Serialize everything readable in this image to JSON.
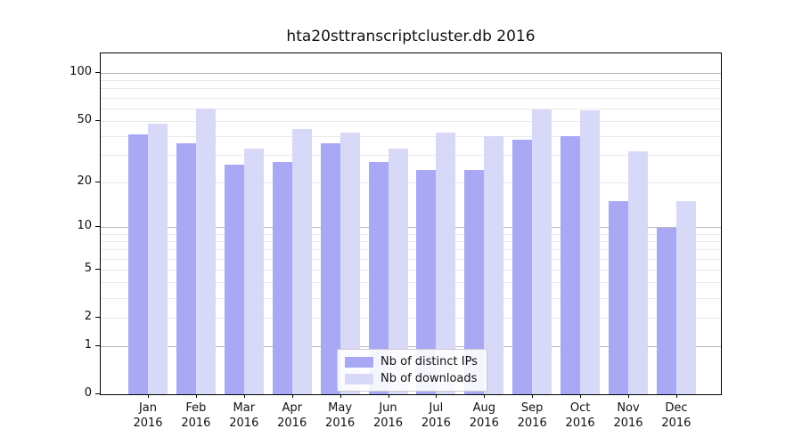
{
  "chart_data": {
    "type": "bar",
    "title": "hta20sttranscriptcluster.db 2016",
    "year_label": "2016",
    "scale": "log10(1+x)",
    "grid": true,
    "legend_position": "bottom-center",
    "categories": [
      "Jan",
      "Feb",
      "Mar",
      "Apr",
      "May",
      "Jun",
      "Jul",
      "Aug",
      "Sep",
      "Oct",
      "Nov",
      "Dec"
    ],
    "yticks": [
      0,
      1,
      2,
      5,
      10,
      20,
      50,
      100
    ],
    "ylim": [
      0,
      133
    ],
    "series": [
      {
        "name": "Nb of distinct IPs",
        "color": "#a8a8f5",
        "values": [
          41,
          36,
          26,
          27,
          36,
          27,
          24,
          24,
          38,
          40,
          15,
          10
        ]
      },
      {
        "name": "Nb of downloads",
        "color": "#d8d8f8",
        "values": [
          48,
          60,
          33,
          44,
          42,
          33,
          42,
          40,
          59,
          58,
          32,
          15
        ]
      }
    ]
  }
}
